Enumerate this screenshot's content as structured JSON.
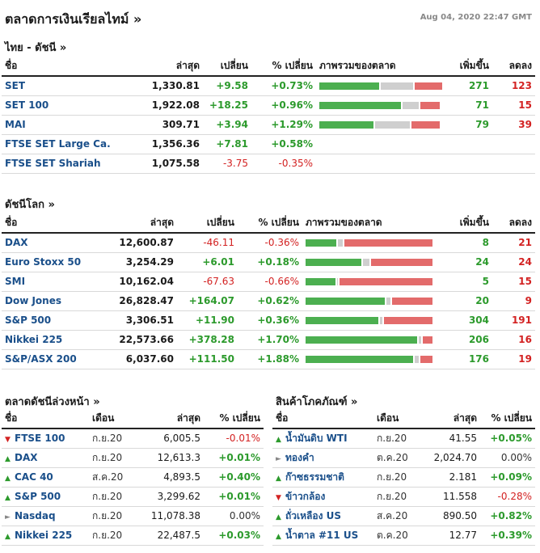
{
  "header": {
    "title": "ตลาดการเงินเรียลไทม์ »",
    "timestamp": "Aug 04, 2020 22:47 GMT"
  },
  "thai": {
    "title": "ไทย - ดัชนี  »",
    "columns": [
      "ชื่อ",
      "ล่าสุด",
      "เปลี่ยน",
      "% เปลี่ยน",
      "ภาพรวมของตลาด",
      "เพิ่มขึ้น",
      "ลดลง"
    ],
    "rows": [
      {
        "name": "SET",
        "last": "1,330.81",
        "chg": "+9.58",
        "pct": "+0.73%",
        "dir": "pos",
        "adv": "271",
        "dec": "123",
        "bar": [
          0.5,
          0.27,
          0.23
        ]
      },
      {
        "name": "SET 100",
        "last": "1,922.08",
        "chg": "+18.25",
        "pct": "+0.96%",
        "dir": "pos",
        "adv": "71",
        "dec": "15",
        "bar": [
          0.68,
          0.14,
          0.16
        ]
      },
      {
        "name": "MAI",
        "last": "309.71",
        "chg": "+3.94",
        "pct": "+1.29%",
        "dir": "pos",
        "adv": "79",
        "dec": "39",
        "bar": [
          0.45,
          0.29,
          0.24
        ]
      },
      {
        "name": "FTSE SET Large Ca.",
        "last": "1,356.36",
        "chg": "+7.81",
        "pct": "+0.58%",
        "dir": "pos",
        "adv": "",
        "dec": "",
        "bar": null
      },
      {
        "name": "FTSE SET Shariah",
        "last": "1,075.58",
        "chg": "-3.75",
        "pct": "-0.35%",
        "dir": "neg",
        "adv": "",
        "dec": "",
        "bar": null
      }
    ]
  },
  "world": {
    "title": "ดัชนีโลก »",
    "columns": [
      "ชื่อ",
      "ล่าสุด",
      "เปลี่ยน",
      "% เปลี่ยน",
      "ภาพรวมของตลาด",
      "เพิ่มขึ้น",
      "ลดลง"
    ],
    "rows": [
      {
        "name": "DAX",
        "last": "12,600.87",
        "chg": "-46.11",
        "pct": "-0.36%",
        "dir": "neg",
        "adv": "8",
        "dec": "21",
        "bar": [
          0.25,
          0.04,
          0.71
        ]
      },
      {
        "name": "Euro Stoxx 50",
        "last": "3,254.29",
        "chg": "+6.01",
        "pct": "+0.18%",
        "dir": "pos",
        "adv": "24",
        "dec": "24",
        "bar": [
          0.45,
          0.05,
          0.5
        ]
      },
      {
        "name": "SMI",
        "last": "10,162.04",
        "chg": "-67.63",
        "pct": "-0.66%",
        "dir": "neg",
        "adv": "5",
        "dec": "15",
        "bar": [
          0.24,
          0.01,
          0.75
        ]
      },
      {
        "name": "Dow Jones",
        "last": "26,828.47",
        "chg": "+164.07",
        "pct": "+0.62%",
        "dir": "pos",
        "adv": "20",
        "dec": "9",
        "bar": [
          0.64,
          0.03,
          0.33
        ]
      },
      {
        "name": "S&P 500",
        "last": "3,306.51",
        "chg": "+11.90",
        "pct": "+0.36%",
        "dir": "pos",
        "adv": "304",
        "dec": "191",
        "bar": [
          0.59,
          0.02,
          0.39
        ]
      },
      {
        "name": "Nikkei 225",
        "last": "22,573.66",
        "chg": "+378.28",
        "pct": "+1.70%",
        "dir": "pos",
        "adv": "206",
        "dec": "16",
        "bar": [
          0.9,
          0.02,
          0.08
        ]
      },
      {
        "name": "S&P/ASX 200",
        "last": "6,037.60",
        "chg": "+111.50",
        "pct": "+1.88%",
        "dir": "pos",
        "adv": "176",
        "dec": "19",
        "bar": [
          0.87,
          0.03,
          0.1
        ]
      }
    ]
  },
  "futures": {
    "title": "ตลาดดัชนีล่วงหน้า »",
    "columns": [
      "ชื่อ",
      "เดือน",
      "ล่าสุด",
      "% เปลี่ยน"
    ],
    "rows": [
      {
        "icon": "down-arrow-icon",
        "arrow": "▼",
        "adir": "dn",
        "name": "FTSE 100",
        "month": "ก.ย.20",
        "last": "6,005.5",
        "pct": "-0.01%",
        "dir": "neg"
      },
      {
        "icon": "up-arrow-icon",
        "arrow": "▲",
        "adir": "up",
        "name": "DAX",
        "month": "ก.ย.20",
        "last": "12,613.3",
        "pct": "+0.01%",
        "dir": "pos"
      },
      {
        "icon": "up-arrow-icon",
        "arrow": "▲",
        "adir": "up",
        "name": "CAC 40",
        "month": "ส.ค.20",
        "last": "4,893.5",
        "pct": "+0.40%",
        "dir": "pos"
      },
      {
        "icon": "up-arrow-icon",
        "arrow": "▲",
        "adir": "up",
        "name": "S&P 500",
        "month": "ก.ย.20",
        "last": "3,299.62",
        "pct": "+0.01%",
        "dir": "pos"
      },
      {
        "icon": "right-arrow-icon",
        "arrow": "►",
        "adir": "fl",
        "name": "Nasdaq",
        "month": "ก.ย.20",
        "last": "11,078.38",
        "pct": "0.00%",
        "dir": "zero"
      },
      {
        "icon": "up-arrow-icon",
        "arrow": "▲",
        "adir": "up",
        "name": "Nikkei 225",
        "month": "ก.ย.20",
        "last": "22,487.5",
        "pct": "+0.03%",
        "dir": "pos"
      }
    ]
  },
  "commodities": {
    "title": "สินค้าโภคภัณฑ์ »",
    "columns": [
      "ชื่อ",
      "เดือน",
      "ล่าสุด",
      "% เปลี่ยน"
    ],
    "rows": [
      {
        "icon": "up-arrow-icon",
        "arrow": "▲",
        "adir": "up",
        "name": "น้ำมันดิบ WTI",
        "month": "ก.ย.20",
        "last": "41.55",
        "pct": "+0.05%",
        "dir": "pos"
      },
      {
        "icon": "right-arrow-icon",
        "arrow": "►",
        "adir": "fl",
        "name": "ทองคำ",
        "month": "ต.ค.20",
        "last": "2,024.70",
        "pct": "0.00%",
        "dir": "zero"
      },
      {
        "icon": "up-arrow-icon",
        "arrow": "▲",
        "adir": "up",
        "name": "ก๊าซธรรมชาติ",
        "month": "ก.ย.20",
        "last": "2.181",
        "pct": "+0.09%",
        "dir": "pos"
      },
      {
        "icon": "down-arrow-icon",
        "arrow": "▼",
        "adir": "dn",
        "name": "ข้าวกล้อง",
        "month": "ก.ย.20",
        "last": "11.558",
        "pct": "-0.28%",
        "dir": "neg"
      },
      {
        "icon": "up-arrow-icon",
        "arrow": "▲",
        "adir": "up",
        "name": "ถั่วเหลือง US",
        "month": "ส.ค.20",
        "last": "890.50",
        "pct": "+0.82%",
        "dir": "pos"
      },
      {
        "icon": "up-arrow-icon",
        "arrow": "▲",
        "adir": "up",
        "name": "น้ำตาล #11 US",
        "month": "ต.ค.20",
        "last": "12.77",
        "pct": "+0.39%",
        "dir": "pos"
      }
    ]
  },
  "colors": {
    "positive": "#2c9a2c",
    "negative": "#d32222",
    "neutral": "#cfcfcf",
    "link": "#1a4f8a"
  }
}
